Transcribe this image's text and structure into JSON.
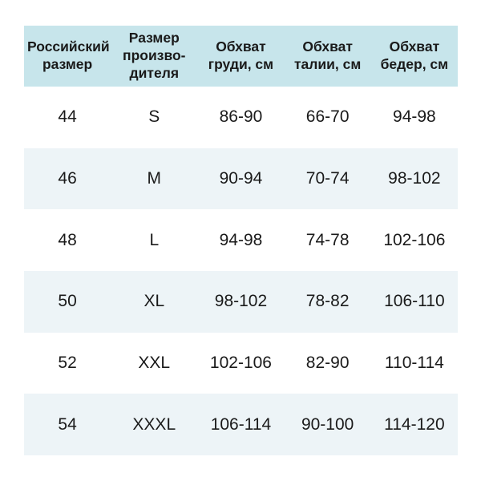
{
  "colors": {
    "page_bg": "#ffffff",
    "header_bg": "#c7e5eb",
    "row_bg": "#ffffff",
    "row_alt_bg": "#edf4f7",
    "text": "#1a1a1a"
  },
  "table": {
    "headers": [
      "Российский\nразмер",
      "Размер\nпроизво-\nдителя",
      "Обхват\nгруди, см",
      "Обхват\nталии, см",
      "Обхват\nбедер, см"
    ],
    "rows": [
      {
        "cells": [
          "44",
          "S",
          "86-90",
          "66-70",
          "94-98"
        ]
      },
      {
        "cells": [
          "46",
          "M",
          "90-94",
          "70-74",
          "98-102"
        ]
      },
      {
        "cells": [
          "48",
          "L",
          "94-98",
          "74-78",
          "102-106"
        ]
      },
      {
        "cells": [
          "50",
          "XL",
          "98-102",
          "78-82",
          "106-110"
        ]
      },
      {
        "cells": [
          "52",
          "XXL",
          "102-106",
          "82-90",
          "110-114"
        ]
      },
      {
        "cells": [
          "54",
          "XXXL",
          "106-114",
          "90-100",
          "114-120"
        ]
      }
    ]
  },
  "chart_data": {
    "type": "table",
    "title": "",
    "columns": [
      "Российский размер",
      "Размер производителя",
      "Обхват груди, см",
      "Обхват талии, см",
      "Обхват бедер, см"
    ],
    "rows": [
      [
        "44",
        "S",
        "86-90",
        "66-70",
        "94-98"
      ],
      [
        "46",
        "M",
        "90-94",
        "70-74",
        "98-102"
      ],
      [
        "48",
        "L",
        "94-98",
        "74-78",
        "102-106"
      ],
      [
        "50",
        "XL",
        "98-102",
        "78-82",
        "106-110"
      ],
      [
        "52",
        "XXL",
        "102-106",
        "82-90",
        "110-114"
      ],
      [
        "54",
        "XXXL",
        "106-114",
        "90-100",
        "114-120"
      ]
    ],
    "layout": {
      "header_background": "#c7e5eb",
      "zebra_striping": true,
      "grid": false
    }
  }
}
